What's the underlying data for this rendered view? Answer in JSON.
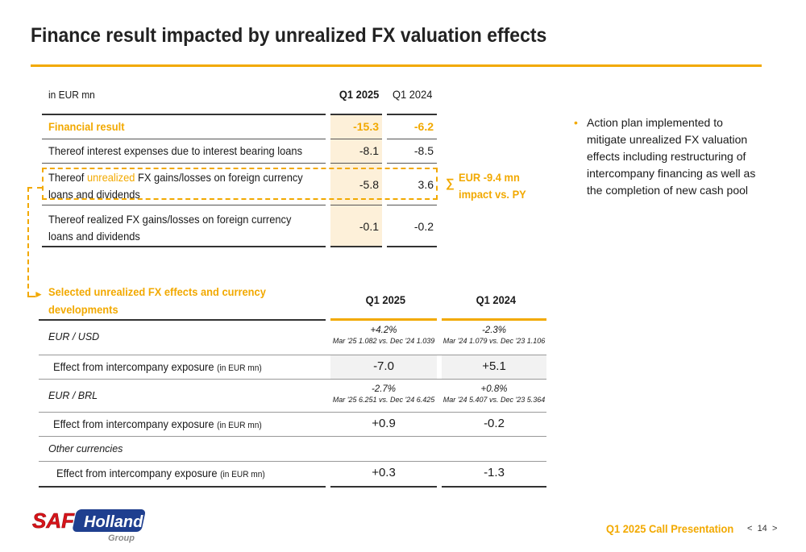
{
  "title": "Finance result impacted by unrealized FX valuation effects",
  "top_table": {
    "unit": "in EUR mn",
    "col1": "Q1 2025",
    "col2": "Q1 2024",
    "rows": [
      {
        "label": "Financial result",
        "v1": "-15.3",
        "v2": "-6.2"
      },
      {
        "label": "Thereof interest expenses due to interest bearing loans",
        "v1": "-8.1",
        "v2": "-8.5"
      },
      {
        "label_pre": "Thereof ",
        "label_hl": "unrealized",
        "label_post": " FX gains/losses on foreign currency",
        "label_line2": "loans and dividends",
        "v1": "-5.8",
        "v2": "3.6"
      },
      {
        "label": "Thereof realized FX gains/losses on foreign currency",
        "label_line2": "loans and dividends",
        "v1": "-0.1",
        "v2": "-0.2"
      }
    ]
  },
  "callout": {
    "sigma": "∑",
    "line1": "EUR -9.4 mn",
    "line2": "impact vs. PY"
  },
  "bullet": {
    "text": "Action plan implemented to mitigate unrealized FX valuation effects including restructuring of intercompany financing as well as the completion of new cash pool"
  },
  "bottom_table": {
    "title_line1": "Selected unrealized FX effects and currency",
    "title_line2": "developments",
    "col1": "Q1 2025",
    "col2": "Q1 2024",
    "rows": [
      {
        "currency": "EUR / USD",
        "p1": "+4.2%",
        "s1": "Mar '25 1.082 vs. Dec '24 1.039",
        "p2": "-2.3%",
        "s2": "Mar '24 1.079 vs. Dec '23 1.106",
        "effect_label": "Effect from intercompany exposure",
        "effect_unit": "(in EUR mn)",
        "e1": "-7.0",
        "e2": "+5.1"
      },
      {
        "currency": "EUR / BRL",
        "p1": "-2.7%",
        "s1": "Mar '25 6.251 vs. Dec '24 6.425",
        "p2": "+0.8%",
        "s2": "Mar '24 5.407 vs. Dec '23 5.364",
        "effect_label": "Effect from intercompany exposure",
        "effect_unit": "(in EUR mn)",
        "e1": "+0.9",
        "e2": "-0.2"
      },
      {
        "currency": "Other currencies",
        "effect_label": "Effect from intercompany exposure",
        "effect_unit": "(in EUR mn)",
        "e1": "+0.3",
        "e2": "-1.3"
      }
    ]
  },
  "footer": {
    "presentation": "Q1 2025 Call Presentation",
    "prev": "<",
    "page": "14",
    "next": ">"
  },
  "logo": {
    "brand": "SAF Holland",
    "sub": "Group"
  },
  "colors": {
    "accent": "#f2a900",
    "highlight": "#fdf0d9",
    "logo_red": "#d7141a",
    "logo_blue": "#1f3f8f"
  }
}
